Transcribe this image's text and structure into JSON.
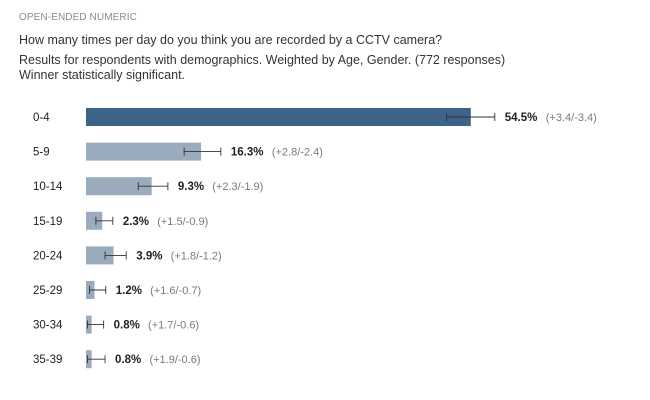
{
  "header": {
    "eyebrow": "OPEN-ENDED NUMERIC",
    "question": "How many times per day do you think you are recorded by a CCTV camera?",
    "meta_line": "Results for respondents with demographics. Weighted by Age, Gender. (772 responses)",
    "significance": "Winner statistically significant."
  },
  "colors": {
    "winner_bar": "#3e6389",
    "bar": "#9aabbd",
    "error_bar": "#333333",
    "label": "#222222",
    "interval_label": "#7a7a7a"
  },
  "chart_data": {
    "type": "bar",
    "orientation": "horizontal",
    "title": "How many times per day do you think you are recorded by a CCTV camera?",
    "xlabel": "",
    "ylabel": "",
    "xlim": [
      0,
      100
    ],
    "grid": false,
    "categories": [
      "0-4",
      "5-9",
      "10-14",
      "15-19",
      "20-24",
      "25-29",
      "30-34",
      "35-39"
    ],
    "values": [
      54.5,
      16.3,
      9.3,
      2.3,
      3.9,
      1.2,
      0.8,
      0.8
    ],
    "value_labels": [
      "54.5%",
      "16.3%",
      "9.3%",
      "2.3%",
      "3.9%",
      "1.2%",
      "0.8%",
      "0.8%"
    ],
    "error_plus": [
      3.4,
      2.8,
      2.3,
      1.5,
      1.8,
      1.6,
      1.7,
      1.9
    ],
    "error_minus": [
      3.4,
      2.4,
      1.9,
      0.9,
      1.2,
      0.7,
      0.6,
      0.6
    ],
    "interval_labels": [
      "(+3.4/-3.4)",
      "(+2.8/-2.4)",
      "(+2.3/-1.9)",
      "(+1.5/-0.9)",
      "(+1.8/-1.2)",
      "(+1.6/-0.7)",
      "(+1.7/-0.6)",
      "(+1.9/-0.6)"
    ],
    "winner_index": 0
  }
}
